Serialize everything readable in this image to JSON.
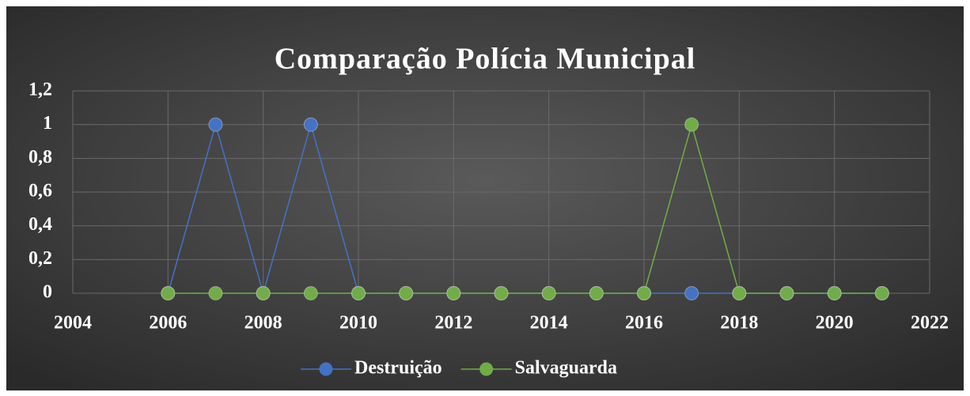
{
  "chart_data": {
    "type": "line",
    "title": "Comparação Polícia Municipal",
    "x": [
      2006,
      2007,
      2008,
      2009,
      2010,
      2011,
      2012,
      2013,
      2014,
      2015,
      2016,
      2017,
      2018,
      2019,
      2020,
      2021
    ],
    "series": [
      {
        "name": "Destruição",
        "color": "#4472c4",
        "values": [
          0,
          1,
          0,
          1,
          0,
          0,
          0,
          0,
          0,
          0,
          0,
          0,
          0,
          0,
          0,
          0
        ]
      },
      {
        "name": "Salvaguarda",
        "color": "#70ad47",
        "values": [
          0,
          0,
          0,
          0,
          0,
          0,
          0,
          0,
          0,
          0,
          0,
          1,
          0,
          0,
          0,
          0
        ]
      }
    ],
    "xlim": [
      2004,
      2022
    ],
    "xticks": [
      2004,
      2006,
      2008,
      2010,
      2012,
      2014,
      2016,
      2018,
      2020,
      2022
    ],
    "ylim": [
      0,
      1.2
    ],
    "yticks": [
      0,
      {
        "value": 0.2,
        "label": "0,2"
      },
      {
        "value": 0.4,
        "label": "0,4"
      },
      {
        "value": 0.6,
        "label": "0,6"
      },
      {
        "value": 0.8,
        "label": "0,8"
      },
      1,
      {
        "value": 1.2,
        "label": "1,2"
      }
    ],
    "grid": true,
    "legend": "bottom"
  }
}
